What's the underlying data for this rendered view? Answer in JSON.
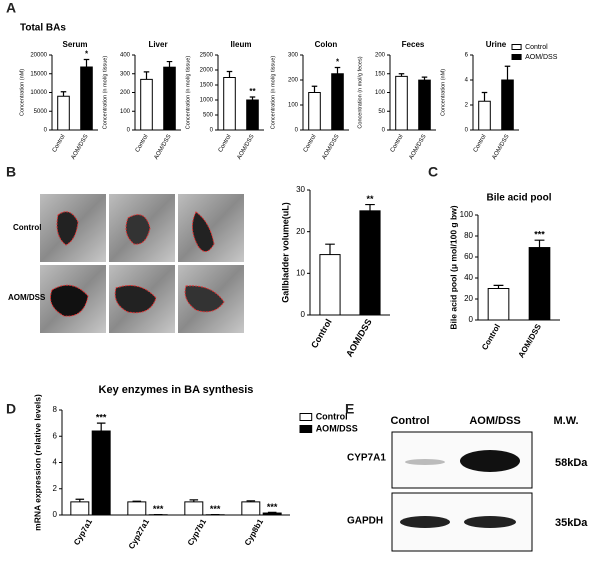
{
  "panel_labels": [
    "A",
    "B",
    "C",
    "D",
    "E"
  ],
  "panel_a": {
    "title": "Total BAs"
  },
  "panel_b_images": {
    "rows": [
      "Control",
      "AOM/DSS"
    ]
  },
  "panel_e_blot": {
    "columns": [
      "Control",
      "AOM/DSS",
      "M.W."
    ],
    "rows": [
      {
        "label": "CYP7A1",
        "mw": "58kDa"
      },
      {
        "label": "GAPDH",
        "mw": "35kDa"
      }
    ]
  },
  "chart_data": [
    {
      "type": "bar",
      "title": "Serum",
      "y_label": "Concentration (nM)",
      "categories": [
        "Control",
        "AOM/DSS"
      ],
      "values": [
        9000,
        16800
      ],
      "errors": [
        1200,
        2000
      ],
      "colors": [
        "#ffffff",
        "#000000"
      ],
      "annotations": [
        null,
        "*"
      ],
      "ylim": [
        0,
        20000
      ],
      "yticks": [
        0,
        5000,
        10000,
        15000,
        20000
      ]
    },
    {
      "type": "bar",
      "title": "Liver",
      "y_label": "Concentration (n mol/g tissue)",
      "categories": [
        "Control",
        "AOM/DSS"
      ],
      "values": [
        270,
        335
      ],
      "errors": [
        40,
        30
      ],
      "colors": [
        "#ffffff",
        "#000000"
      ],
      "ylim": [
        0,
        400
      ],
      "yticks": [
        0,
        100,
        200,
        300,
        400
      ]
    },
    {
      "type": "bar",
      "title": "Ileum",
      "y_label": "Concentration (n mol/g tissue)",
      "categories": [
        "Control",
        "AOM/DSS"
      ],
      "values": [
        1750,
        1000
      ],
      "errors": [
        200,
        100
      ],
      "colors": [
        "#ffffff",
        "#000000"
      ],
      "annotations": [
        null,
        "**"
      ],
      "ylim": [
        0,
        2500
      ],
      "yticks": [
        0,
        500,
        1000,
        1500,
        2000,
        2500
      ]
    },
    {
      "type": "bar",
      "title": "Colon",
      "y_label": "Concentration (n mol/g tissue)",
      "categories": [
        "Control",
        "AOM/DSS"
      ],
      "values": [
        150,
        225
      ],
      "errors": [
        25,
        25
      ],
      "colors": [
        "#ffffff",
        "#000000"
      ],
      "annotations": [
        null,
        "*"
      ],
      "ylim": [
        0,
        300
      ],
      "yticks": [
        0,
        100,
        200,
        300
      ]
    },
    {
      "type": "bar",
      "title": "Feces",
      "y_label": "Concentration (n mol/g feces)",
      "categories": [
        "Control",
        "AOM/DSS"
      ],
      "values": [
        143,
        133
      ],
      "errors": [
        7,
        8
      ],
      "colors": [
        "#ffffff",
        "#000000"
      ],
      "ylim": [
        0,
        200
      ],
      "yticks": [
        0,
        50,
        100,
        150,
        200
      ]
    },
    {
      "type": "bar",
      "title": "Urine",
      "y_label": "Concentration (nM)",
      "categories": [
        "Control",
        "AOM/DSS"
      ],
      "values": [
        2.3,
        4.0
      ],
      "errors": [
        0.7,
        1.1
      ],
      "colors": [
        "#ffffff",
        "#000000"
      ],
      "ylim": [
        0,
        6
      ],
      "yticks": [
        0,
        2,
        4,
        6
      ],
      "legend": "upper right"
    },
    {
      "type": "bar",
      "y_label": "Gallbladder volume(uL)",
      "categories": [
        "Control",
        "AOM/DSS"
      ],
      "values": [
        14.5,
        25
      ],
      "errors": [
        2.5,
        1.5
      ],
      "colors": [
        "#ffffff",
        "#000000"
      ],
      "annotations": [
        null,
        "**"
      ],
      "ylim": [
        0,
        30
      ],
      "yticks": [
        0,
        10,
        20,
        30
      ]
    },
    {
      "type": "bar",
      "title": "Bile acid pool",
      "y_label": "Bile acid pool (μ mol/100 g bw)",
      "categories": [
        "Control",
        "AOM/DSS"
      ],
      "values": [
        30,
        69
      ],
      "errors": [
        3,
        7
      ],
      "colors": [
        "#ffffff",
        "#000000"
      ],
      "annotations": [
        null,
        "***"
      ],
      "ylim": [
        0,
        100
      ],
      "yticks": [
        0,
        20,
        40,
        60,
        80,
        100
      ]
    },
    {
      "type": "bar",
      "title": "Key enzymes in BA synthesis",
      "y_label": "mRNA expression (relative levels)",
      "categories": [
        "Cyp7a1",
        "Cyp27a1",
        "Cyp7b1",
        "Cyp8b1"
      ],
      "series": [
        {
          "name": "Control",
          "color": "#ffffff",
          "values": [
            1,
            1,
            1,
            1
          ],
          "errors": [
            0.2,
            0.05,
            0.15,
            0.08
          ]
        },
        {
          "name": "AOM/DSS",
          "color": "#000000",
          "values": [
            6.4,
            0.02,
            0.02,
            0.15
          ],
          "errors": [
            0.6,
            0.01,
            0.01,
            0.05
          ],
          "annotations": [
            "***",
            "***",
            "***",
            "***"
          ]
        }
      ],
      "ylim": [
        0,
        8
      ],
      "yticks": [
        0,
        2,
        4,
        6,
        8
      ],
      "legend": "upper right"
    }
  ]
}
